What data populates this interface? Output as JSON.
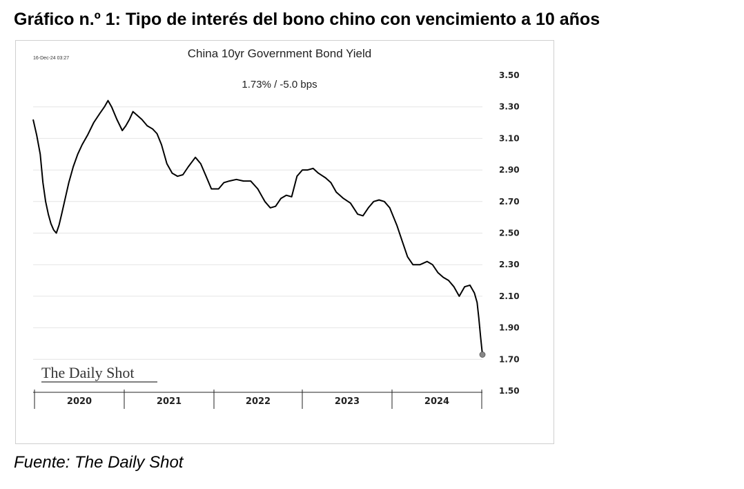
{
  "figure": {
    "title": "Gráfico n.º 1: Tipo de interés del bono chino con vencimiento a 10 años",
    "source": "Fuente: The Daily Shot"
  },
  "chart_data": {
    "type": "line",
    "title": "China 10yr Government Bond Yield",
    "subtitle": "1.73%  /  -5.0 bps",
    "timestamp": "16-Dec-24 03:27",
    "watermark": "The Daily Shot",
    "xlabel": "",
    "ylabel": "",
    "ylim": [
      1.5,
      3.5
    ],
    "xlim": [
      2019.92,
      2024.96
    ],
    "yaxis_position": "right",
    "grid": "horizontal",
    "legend": "none",
    "y_ticks": [
      "3.50",
      "3.30",
      "3.10",
      "2.90",
      "2.70",
      "2.50",
      "2.30",
      "2.10",
      "1.90",
      "1.70",
      "1.50"
    ],
    "x_ticks": [
      "2020",
      "2021",
      "2022",
      "2023",
      "2024"
    ],
    "line_color": "#000000",
    "marker_color": "#888888",
    "series": [
      {
        "values": [
          [
            2019.92,
            3.22
          ],
          [
            2019.96,
            3.12
          ],
          [
            2020.0,
            3.0
          ],
          [
            2020.03,
            2.82
          ],
          [
            2020.06,
            2.7
          ],
          [
            2020.09,
            2.62
          ],
          [
            2020.12,
            2.56
          ],
          [
            2020.15,
            2.52
          ],
          [
            2020.18,
            2.5
          ],
          [
            2020.21,
            2.55
          ],
          [
            2020.24,
            2.62
          ],
          [
            2020.28,
            2.72
          ],
          [
            2020.32,
            2.82
          ],
          [
            2020.37,
            2.92
          ],
          [
            2020.42,
            3.0
          ],
          [
            2020.47,
            3.06
          ],
          [
            2020.53,
            3.12
          ],
          [
            2020.6,
            3.2
          ],
          [
            2020.67,
            3.26
          ],
          [
            2020.72,
            3.3
          ],
          [
            2020.76,
            3.34
          ],
          [
            2020.8,
            3.3
          ],
          [
            2020.86,
            3.22
          ],
          [
            2020.92,
            3.15
          ],
          [
            2020.96,
            3.18
          ],
          [
            2021.0,
            3.22
          ],
          [
            2021.04,
            3.27
          ],
          [
            2021.08,
            3.25
          ],
          [
            2021.14,
            3.22
          ],
          [
            2021.2,
            3.18
          ],
          [
            2021.26,
            3.16
          ],
          [
            2021.31,
            3.13
          ],
          [
            2021.36,
            3.06
          ],
          [
            2021.42,
            2.94
          ],
          [
            2021.48,
            2.88
          ],
          [
            2021.54,
            2.86
          ],
          [
            2021.6,
            2.87
          ],
          [
            2021.66,
            2.92
          ],
          [
            2021.74,
            2.98
          ],
          [
            2021.8,
            2.94
          ],
          [
            2021.86,
            2.86
          ],
          [
            2021.92,
            2.78
          ],
          [
            2022.0,
            2.78
          ],
          [
            2022.06,
            2.82
          ],
          [
            2022.12,
            2.83
          ],
          [
            2022.2,
            2.84
          ],
          [
            2022.28,
            2.83
          ],
          [
            2022.36,
            2.83
          ],
          [
            2022.44,
            2.78
          ],
          [
            2022.52,
            2.7
          ],
          [
            2022.58,
            2.66
          ],
          [
            2022.64,
            2.67
          ],
          [
            2022.7,
            2.72
          ],
          [
            2022.76,
            2.74
          ],
          [
            2022.82,
            2.73
          ],
          [
            2022.88,
            2.86
          ],
          [
            2022.94,
            2.9
          ],
          [
            2023.0,
            2.9
          ],
          [
            2023.06,
            2.91
          ],
          [
            2023.12,
            2.88
          ],
          [
            2023.2,
            2.85
          ],
          [
            2023.26,
            2.82
          ],
          [
            2023.32,
            2.76
          ],
          [
            2023.4,
            2.72
          ],
          [
            2023.48,
            2.69
          ],
          [
            2023.56,
            2.62
          ],
          [
            2023.62,
            2.61
          ],
          [
            2023.68,
            2.66
          ],
          [
            2023.74,
            2.7
          ],
          [
            2023.8,
            2.71
          ],
          [
            2023.86,
            2.7
          ],
          [
            2023.92,
            2.66
          ],
          [
            2024.0,
            2.55
          ],
          [
            2024.06,
            2.45
          ],
          [
            2024.12,
            2.35
          ],
          [
            2024.18,
            2.3
          ],
          [
            2024.26,
            2.3
          ],
          [
            2024.34,
            2.32
          ],
          [
            2024.4,
            2.3
          ],
          [
            2024.46,
            2.25
          ],
          [
            2024.52,
            2.22
          ],
          [
            2024.58,
            2.2
          ],
          [
            2024.64,
            2.16
          ],
          [
            2024.7,
            2.1
          ],
          [
            2024.76,
            2.16
          ],
          [
            2024.82,
            2.17
          ],
          [
            2024.87,
            2.12
          ],
          [
            2024.9,
            2.06
          ],
          [
            2024.92,
            1.96
          ],
          [
            2024.94,
            1.84
          ],
          [
            2024.96,
            1.73
          ]
        ]
      }
    ]
  }
}
